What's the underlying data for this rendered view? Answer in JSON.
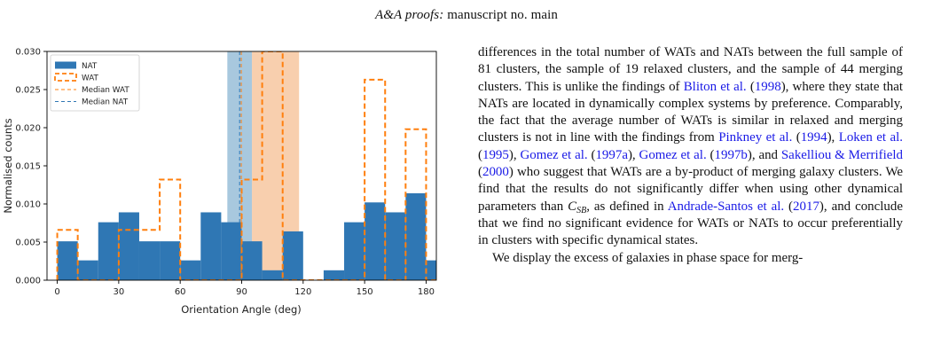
{
  "header": {
    "journal": "A&A proofs:",
    "manuscript": "manuscript no. main"
  },
  "colors": {
    "nat": "#2f77b4",
    "wat": "#ff7f0e",
    "median_nat_band": "#a8c8de",
    "median_wat_band": "#f8cfae",
    "overlap_band": "#cac6c2"
  },
  "chart_data": {
    "type": "bar",
    "xlabel": "Orientation Angle (deg)",
    "ylabel": "Normalised counts",
    "xlim": [
      -5,
      185
    ],
    "ylim": [
      0,
      0.03
    ],
    "xticks": [
      0,
      30,
      60,
      90,
      120,
      150,
      180
    ],
    "yticks": [
      0.0,
      0.005,
      0.01,
      0.015,
      0.02,
      0.025,
      0.03
    ],
    "ytick_labels": [
      "0.000",
      "0.005",
      "0.010",
      "0.015",
      "0.020",
      "0.025",
      "0.030"
    ],
    "bin_edges": [
      0,
      10,
      20,
      30,
      40,
      50,
      60,
      70,
      80,
      90,
      100,
      110,
      120,
      130,
      140,
      150,
      160,
      170,
      180
    ],
    "series": [
      {
        "name": "NAT",
        "style": "filled",
        "values": [
          0.0051,
          0.0026,
          0.0076,
          0.0089,
          0.0051,
          0.0051,
          0.0026,
          0.0089,
          0.0076,
          0.0051,
          0.0013,
          0.0064,
          0.0,
          0.0013,
          0.0076,
          0.0102,
          0.0089,
          0.0114,
          0.0026
        ]
      },
      {
        "name": "WAT",
        "style": "step-dashed",
        "values": [
          0.0066,
          0.0,
          0.0,
          0.0066,
          0.0066,
          0.0132,
          0.0,
          0.0,
          0.0,
          0.0132,
          0.03,
          0.0,
          0.0,
          0.0,
          0.0,
          0.0263,
          0.0,
          0.0198,
          0.0
        ]
      }
    ],
    "median_lines": [
      {
        "name": "Median WAT",
        "x": 89.8,
        "band": [
          95,
          118
        ]
      },
      {
        "name": "Median NAT",
        "x": 89.0,
        "band": [
          83,
          95
        ]
      }
    ],
    "legend": {
      "placement": "top-left",
      "entries": [
        "NAT",
        "WAT",
        "Median WAT",
        "Median NAT"
      ]
    }
  },
  "text": {
    "p1": [
      {
        "t": "differences in the total number of WATs and NATs between the full sample of 81 clusters, the sample of 19 relaxed clusters, and the sample of 44 merging clusters. This is unlike the findings of "
      },
      {
        "t": "Bliton et al.",
        "c": 1
      },
      {
        "t": " ("
      },
      {
        "t": "1998",
        "c": 1
      },
      {
        "t": "), where they state that NATs are located in dynamically complex systems by preference. Comparably, the fact that the average number of WATs is similar in relaxed and merging clusters is not in line with the findings from "
      },
      {
        "t": "Pinkney et al.",
        "c": 1
      },
      {
        "t": " ("
      },
      {
        "t": "1994",
        "c": 1
      },
      {
        "t": "), "
      },
      {
        "t": "Loken et al.",
        "c": 1
      },
      {
        "t": " ("
      },
      {
        "t": "1995",
        "c": 1
      },
      {
        "t": "), "
      },
      {
        "t": "Gomez et al.",
        "c": 1
      },
      {
        "t": " ("
      },
      {
        "t": "1997a",
        "c": 1
      },
      {
        "t": "), "
      },
      {
        "t": "Gomez et al.",
        "c": 1
      },
      {
        "t": " ("
      },
      {
        "t": "1997b",
        "c": 1
      },
      {
        "t": "), and "
      },
      {
        "t": "Sakelliou & Merrifield",
        "c": 1
      },
      {
        "t": " ("
      },
      {
        "t": "2000",
        "c": 1
      },
      {
        "t": ") who suggest that WATs are a by-product of merging galaxy clusters. We find that the results do not significantly differ when using other dynamical parameters than "
      },
      {
        "t": "C",
        "m": "SB"
      },
      {
        "t": ", as defined in "
      },
      {
        "t": "Andrade-Santos et al.",
        "c": 1
      },
      {
        "t": " ("
      },
      {
        "t": "2017",
        "c": 1
      },
      {
        "t": "), and conclude that we find no significant evidence for WATs or NATs to occur preferentially in clusters with specific dynamical states."
      }
    ],
    "p2": "We display the excess of galaxies in phase space for merg-"
  }
}
